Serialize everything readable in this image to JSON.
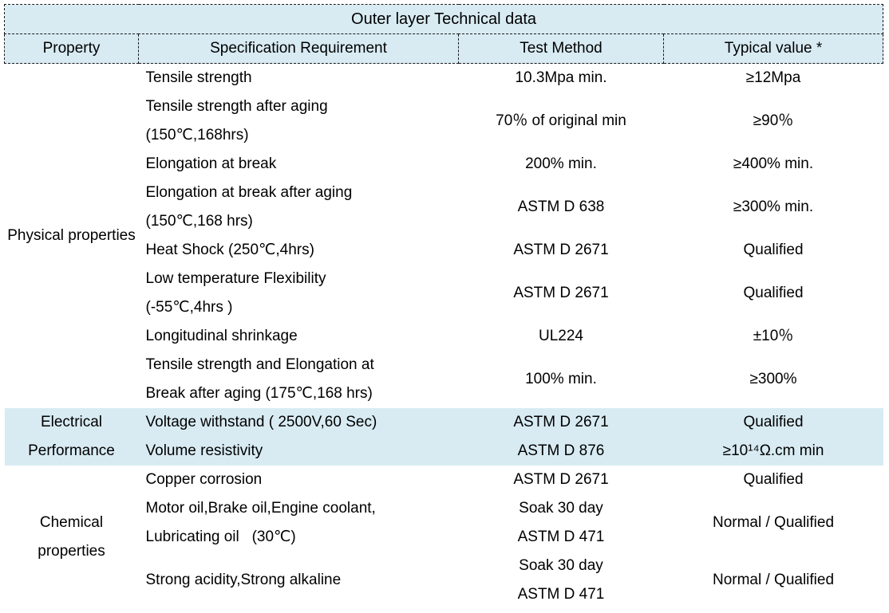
{
  "table": {
    "title": "Outer layer Technical data",
    "columns": {
      "property": "Property",
      "spec": "Specification Requirement",
      "method": "Test Method",
      "value": "Typical value *"
    },
    "colors": {
      "header_bg": "#d8ebf3",
      "highlight_bg": "#d8ebf3",
      "border": "#1a1a1a",
      "text": "#000000"
    },
    "groups": [
      {
        "property": "Physical properties",
        "rows": [
          {
            "spec": "Tensile strength",
            "method": "10.3Mpa min.",
            "value": "≥12Mpa"
          },
          {
            "spec": "Tensile strength after aging\n(150℃,168hrs)",
            "method": "70％ of original min",
            "value": "≥90％"
          },
          {
            "spec": "Elongation at break",
            "method": "200% min.",
            "value": "≥400% min."
          },
          {
            "spec": "Elongation at break after aging\n(150℃,168 hrs)",
            "method": "ASTM D 638",
            "value": "≥300% min."
          },
          {
            "spec": "Heat Shock (250℃,4hrs)",
            "method": "ASTM D 2671",
            "value": "Qualified"
          },
          {
            "spec": "Low temperature Flexibility\n(-55℃,4hrs )",
            "method": "ASTM D 2671",
            "value": "Qualified"
          },
          {
            "spec": "Longitudinal shrinkage",
            "method": "UL224",
            "value": "±10％"
          },
          {
            "spec": "Tensile strength and Elongation at\nBreak after aging (175℃,168 hrs)",
            "method": "100% min.",
            "value": "≥300%"
          }
        ]
      },
      {
        "property": "Electrical Performance",
        "rows": [
          {
            "spec": "Voltage withstand ( 2500V,60 Sec)",
            "method": "ASTM D 2671",
            "value": "Qualified"
          },
          {
            "spec": "Volume resistivity",
            "method": "ASTM D 876",
            "value": "≥10¹⁴Ω.cm min"
          }
        ]
      },
      {
        "property": "Chemical properties",
        "rows": [
          {
            "spec": "Copper corrosion",
            "method": "ASTM D 2671",
            "value": "Qualified"
          },
          {
            "spec": "Motor oil,Brake oil,Engine coolant,\nLubricating oil   (30℃)",
            "method": "Soak 30 day\nASTM D 471",
            "value": "Normal / Qualified"
          },
          {
            "spec": "Strong acidity,Strong alkaline",
            "method": "Soak 30 day\nASTM D 471",
            "value": "Normal / Qualified"
          }
        ]
      }
    ]
  }
}
